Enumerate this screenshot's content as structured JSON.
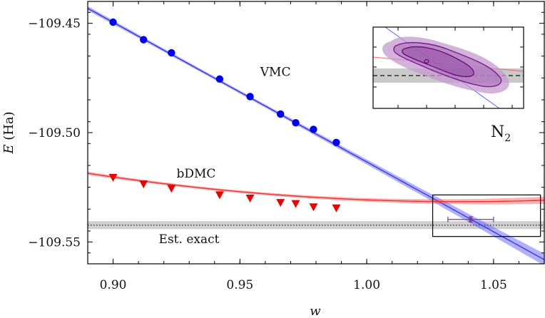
{
  "chart_data": {
    "type": "scatter",
    "title": "",
    "xlabel": "w",
    "ylabel": "E (Ha)",
    "xlim": [
      0.89,
      1.07
    ],
    "ylim": [
      -109.56,
      -109.44
    ],
    "xticks": [
      "0.90",
      "0.95",
      "1.00",
      "1.05"
    ],
    "xtick_values": [
      0.9,
      0.95,
      1.0,
      1.05
    ],
    "yticks": [
      "−109.45",
      "−109.50",
      "−109.55"
    ],
    "ytick_values": [
      -109.45,
      -109.5,
      -109.55
    ],
    "system_label": {
      "base": "N",
      "subscript": "2"
    },
    "series": [
      {
        "name": "VMC",
        "color": "#0000ee",
        "band_color": "#5050ff",
        "marker": "circle",
        "x": [
          0.9,
          0.912,
          0.923,
          0.942,
          0.954,
          0.966,
          0.972,
          0.979,
          0.988
        ],
        "y": [
          -109.4495,
          -109.4575,
          -109.4635,
          -109.4755,
          -109.4835,
          -109.4915,
          -109.4955,
          -109.4985,
          -109.5045
        ],
        "fit": {
          "slope": -0.6386,
          "intercept": -108.8748,
          "band_pivot_x": 0.94,
          "band_halfwidth_at_pivot": 0.0007,
          "band_halfwidth_growth": 0.12
        }
      },
      {
        "name": "bDMC",
        "color": "#ee0000",
        "band_color": "#ff5050",
        "marker": "triangle-down",
        "x": [
          0.9,
          0.912,
          0.923,
          0.942,
          0.954,
          0.966,
          0.972,
          0.979,
          0.988
        ],
        "y": [
          -109.5205,
          -109.5235,
          -109.5255,
          -109.5285,
          -109.53,
          -109.532,
          -109.5325,
          -109.534,
          -109.5345
        ],
        "fit": {
          "quadratic": [
            -109.5203,
            -0.1645,
            0.6
          ],
          "x0": 0.9,
          "band_pivot_x": 0.94,
          "band_halfwidth_at_pivot": 0.0006,
          "band_halfwidth_growth": 0.06
        }
      }
    ],
    "extrapolated_point": {
      "x": 1.041,
      "y": -109.5397,
      "xerr": 0.009,
      "yerr": 0.0012,
      "color": "#7a3a9a"
    },
    "exact_estimate": {
      "label": "Est. exact",
      "value": -109.5423,
      "uncertainty": 0.0018
    },
    "zoom_box": {
      "x": [
        1.026,
        1.0685
      ],
      "y": [
        -109.5475,
        -109.5285
      ]
    },
    "annotations": [
      {
        "text": "VMC",
        "x": 0.958,
        "y": -109.474
      },
      {
        "text": "bDMC",
        "x": 0.925,
        "y": -109.5205
      },
      {
        "text": "Est. exact",
        "x": 0.918,
        "y": -109.5505
      }
    ],
    "inset": {
      "type": "contour",
      "description": "joint distribution contours of extrapolation"
    }
  }
}
